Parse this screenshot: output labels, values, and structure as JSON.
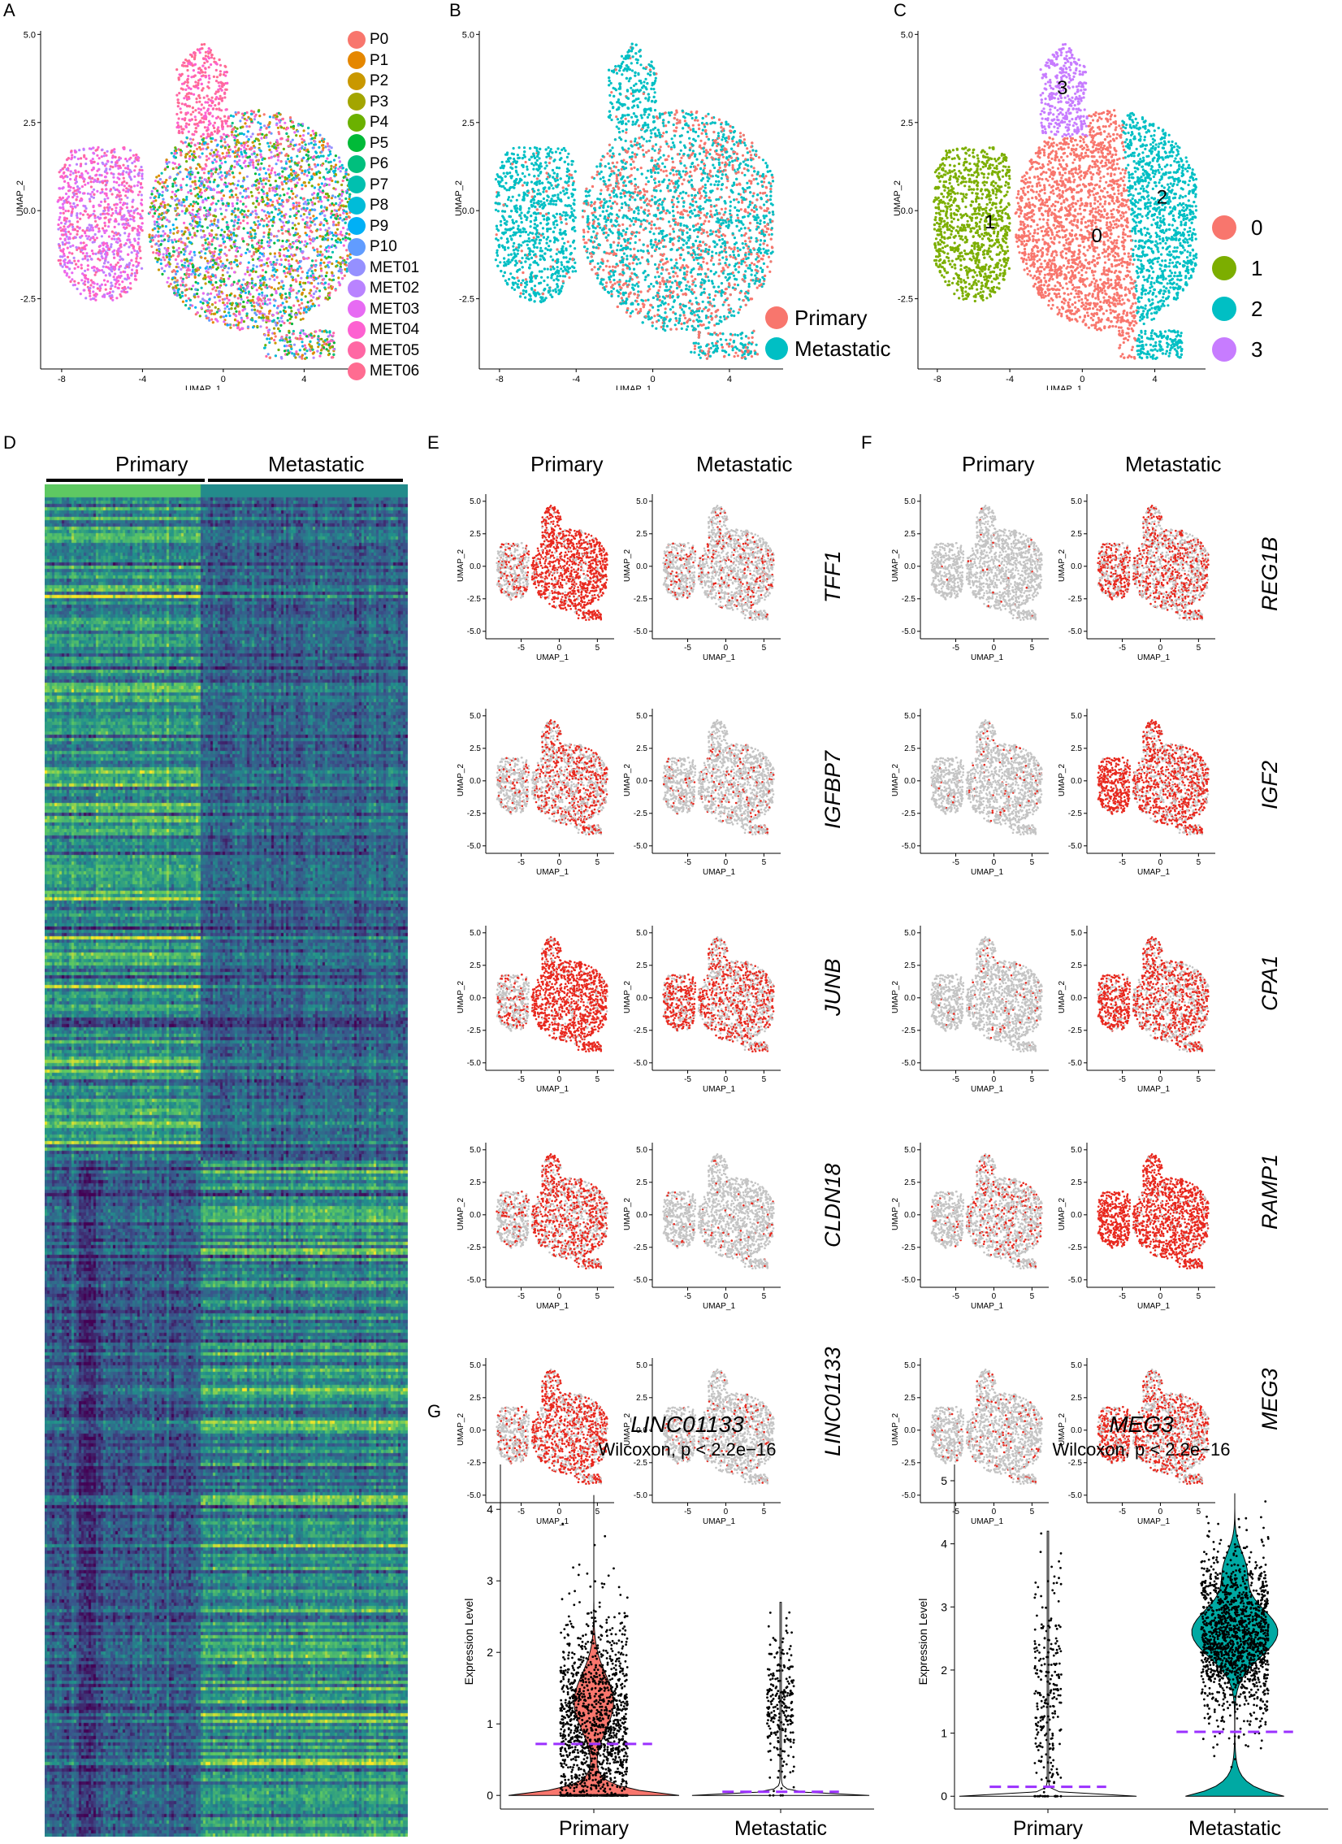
{
  "panels": {
    "A": {
      "label": "A"
    },
    "B": {
      "label": "B"
    },
    "C": {
      "label": "C"
    },
    "D": {
      "label": "D"
    },
    "E": {
      "label": "E"
    },
    "F": {
      "label": "F"
    },
    "G": {
      "label": "G"
    }
  },
  "umap_axes": {
    "xlabel": "UMAP_1",
    "ylabel": "UMAP_2",
    "abc_xticks": [
      "-8",
      "-4",
      "0",
      "4"
    ],
    "abc_yticks": [
      "5.0",
      "2.5",
      "0.0",
      "-2.5"
    ],
    "small_xticks": [
      "-5",
      "0",
      "5"
    ],
    "small_yticks": [
      "5.0",
      "2.5",
      "0.0",
      "-2.5",
      "-5.0"
    ]
  },
  "panelA": {
    "legend": [
      {
        "name": "P0",
        "color": "#F8766D"
      },
      {
        "name": "P1",
        "color": "#E58700"
      },
      {
        "name": "P2",
        "color": "#C99800"
      },
      {
        "name": "P3",
        "color": "#A3A500"
      },
      {
        "name": "P4",
        "color": "#6BB100"
      },
      {
        "name": "P5",
        "color": "#00BA38"
      },
      {
        "name": "P6",
        "color": "#00BF7D"
      },
      {
        "name": "P7",
        "color": "#00C0AF"
      },
      {
        "name": "P8",
        "color": "#00BCD8"
      },
      {
        "name": "P9",
        "color": "#00B0F6"
      },
      {
        "name": "P10",
        "color": "#619CFF"
      },
      {
        "name": "MET01",
        "color": "#9590FF"
      },
      {
        "name": "MET02",
        "color": "#B983FF"
      },
      {
        "name": "MET03",
        "color": "#E76BF3"
      },
      {
        "name": "MET04",
        "color": "#FD61D1"
      },
      {
        "name": "MET05",
        "color": "#FF67A4"
      },
      {
        "name": "MET06",
        "color": "#FF6C91"
      }
    ]
  },
  "panelB": {
    "legend": [
      {
        "name": "Primary",
        "color": "#F8766D"
      },
      {
        "name": "Metastatic",
        "color": "#00BFC4"
      }
    ]
  },
  "panelC": {
    "legend": [
      {
        "name": "0",
        "color": "#F8766D"
      },
      {
        "name": "1",
        "color": "#7CAE00"
      },
      {
        "name": "2",
        "color": "#00BFC4"
      },
      {
        "name": "3",
        "color": "#C77CFF"
      }
    ],
    "cluster_labels": [
      "0",
      "1",
      "2",
      "3"
    ]
  },
  "panelD": {
    "groups": [
      "Primary",
      "Metastatic"
    ]
  },
  "panelE": {
    "columns": [
      "Primary",
      "Metastatic"
    ],
    "genes": [
      "TFF1",
      "IGFBP7",
      "JUNB",
      "CLDN18",
      "LINC01133"
    ],
    "primary_intensity": [
      0.85,
      0.45,
      0.9,
      0.6,
      0.65
    ],
    "metastatic_intensity": [
      0.15,
      0.1,
      0.5,
      0.05,
      0.08
    ]
  },
  "panelF": {
    "columns": [
      "Primary",
      "Metastatic"
    ],
    "genes": [
      "REG1B",
      "IGF2",
      "CPA1",
      "RAMP1",
      "MEG3"
    ],
    "primary_intensity": [
      0.03,
      0.05,
      0.05,
      0.2,
      0.12
    ],
    "metastatic_intensity": [
      0.45,
      0.65,
      0.6,
      0.9,
      0.5
    ]
  },
  "chart_data": [
    {
      "type": "violin",
      "title": "LINC01133",
      "subtitle": "Wilcoxon, p < 2.2e−16",
      "ylabel": "Expression Level",
      "categories": [
        "Primary",
        "Metastatic"
      ],
      "colors": [
        "#F8766D",
        "#FFFFFF"
      ],
      "medians": [
        0.72,
        0.05
      ],
      "max": [
        4.2,
        2.7
      ],
      "ylim": [
        -0.1,
        4.4
      ],
      "yticks": [
        "0",
        "1",
        "2",
        "3",
        "4"
      ]
    },
    {
      "type": "violin",
      "title": "MEG3",
      "subtitle": "Wilcoxon, p < 2.2e−16",
      "ylabel": "Expression Level",
      "categories": [
        "Primary",
        "Metastatic"
      ],
      "colors": [
        "#FFFFFF",
        "#00A9A3"
      ],
      "medians": [
        0.15,
        1.02
      ],
      "max": [
        4.2,
        4.8
      ],
      "ylim": [
        -0.1,
        5.0
      ],
      "yticks": [
        "0",
        "1",
        "2",
        "3",
        "4",
        "5"
      ]
    }
  ]
}
